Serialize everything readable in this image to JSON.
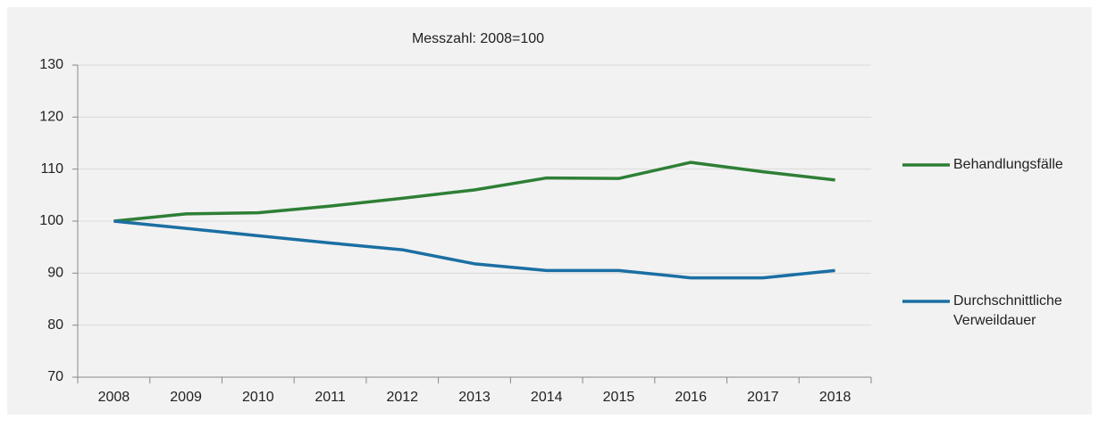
{
  "chart_data": {
    "type": "line",
    "title": "Messzahl: 2008=100",
    "categories": [
      "2008",
      "2009",
      "2010",
      "2011",
      "2012",
      "2013",
      "2014",
      "2015",
      "2016",
      "2017",
      "2018"
    ],
    "series": [
      {
        "name": "Behandlungsfälle",
        "color": "#2e7f35",
        "values": [
          100,
          101.4,
          101.6,
          102.9,
          104.4,
          106.0,
          108.3,
          108.2,
          111.3,
          109.5,
          107.9
        ]
      },
      {
        "name": "Durchschnittliche Verweildauer",
        "color": "#1b6fa3",
        "values": [
          100,
          98.6,
          97.2,
          95.8,
          94.5,
          91.8,
          90.5,
          90.5,
          89.1,
          89.1,
          90.5
        ]
      }
    ],
    "ylim": [
      70,
      130
    ],
    "yticks": [
      70,
      80,
      90,
      100,
      110,
      120,
      130
    ],
    "grid": true
  }
}
